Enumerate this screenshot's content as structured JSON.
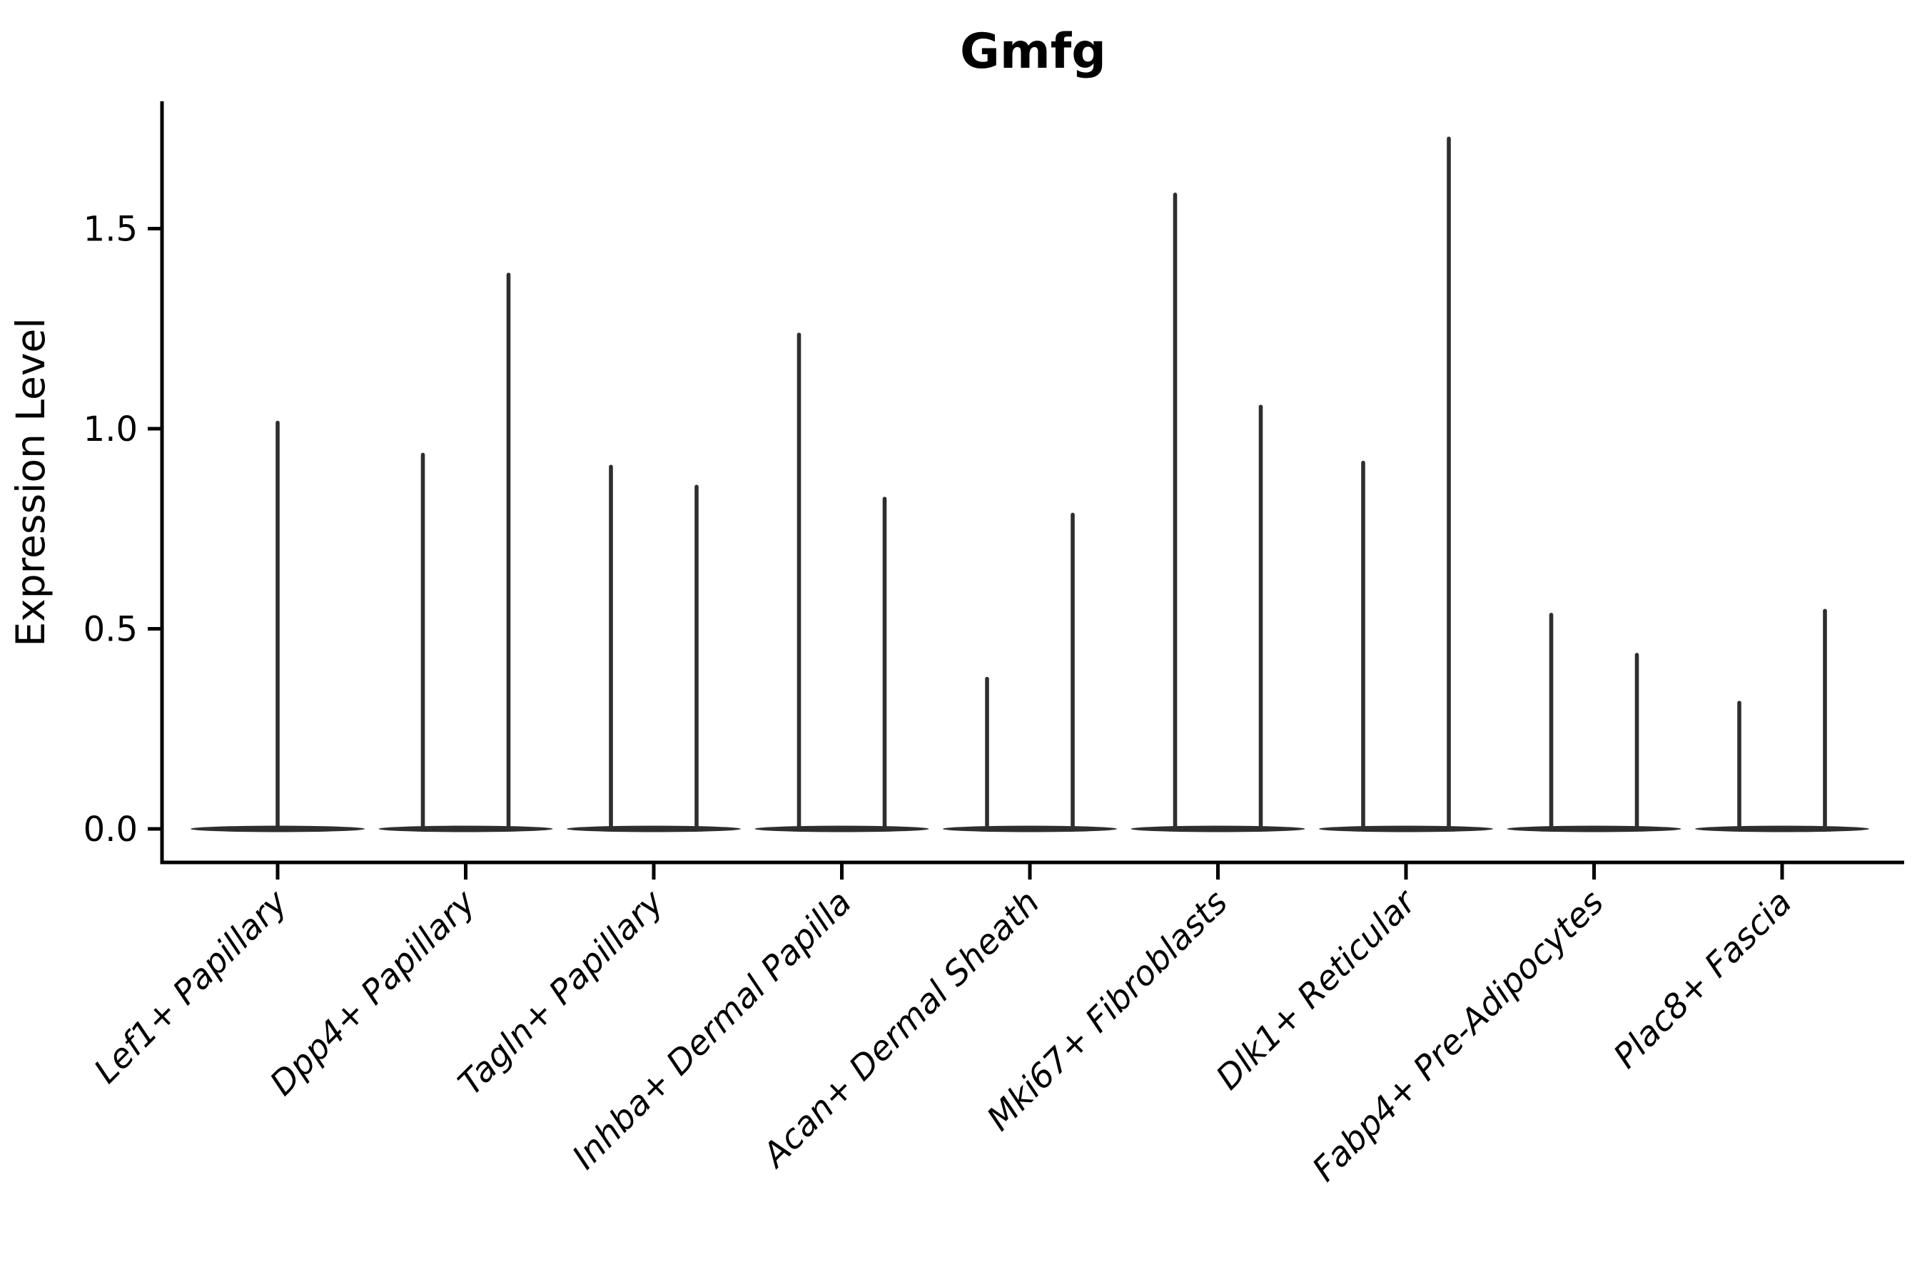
{
  "figure": {
    "background_color": "#ffffff",
    "axis_color": "#000000",
    "text_color": "#000000",
    "violin_color": "#2e2e2e"
  },
  "chart_data": {
    "type": "violin",
    "title": "Gmfg",
    "xlabel": "",
    "ylabel": "Expression Level",
    "grid": false,
    "legend_position": "none",
    "ylim": [
      -0.09,
      1.82
    ],
    "yticks": [
      0.0,
      0.5,
      1.0,
      1.5
    ],
    "ytick_labels": [
      "0.0",
      "0.5",
      "1.0",
      "1.5"
    ],
    "categories": [
      "Lef1+ Papillary",
      "Dpp4+ Papillary",
      "Tagln+ Papillary",
      "Inhba+ Dermal Papilla",
      "Acan+ Dermal Sheath",
      "Mki67+ Fibroblasts",
      "Dlk1+ Reticular",
      "Fabp4+ Pre-Adipocytes",
      "Plac8+ Fascia"
    ],
    "series_description": "Each category shows violin(s) collapsed at 0 expression (flat horizontal body) with a thin spike rising to the maximum expression value.",
    "violin_max_values": [
      [
        1.02
      ],
      [
        0.94,
        1.39
      ],
      [
        0.91,
        0.86
      ],
      [
        1.24,
        0.83
      ],
      [
        0.38,
        0.79
      ],
      [
        1.59,
        1.06
      ],
      [
        0.92,
        1.73
      ],
      [
        0.54,
        0.44
      ],
      [
        0.32,
        0.55
      ]
    ],
    "baseline_value": 0.0
  }
}
